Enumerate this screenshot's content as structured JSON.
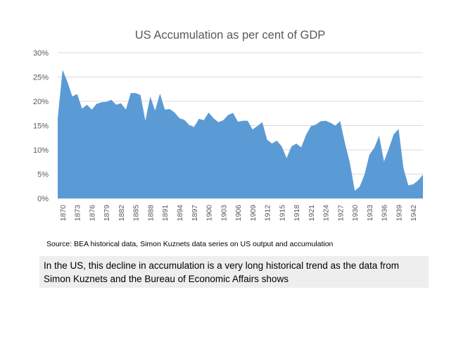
{
  "chart_data": {
    "type": "area",
    "title": "US Accumulation as per cent of GDP",
    "xlabel": "",
    "ylabel": "",
    "ylim": [
      0,
      30
    ],
    "y_ticks": [
      "0%",
      "5%",
      "10%",
      "15%",
      "20%",
      "25%",
      "30%"
    ],
    "x_tick_labels": [
      "1870",
      "1873",
      "1876",
      "1879",
      "1882",
      "1885",
      "1888",
      "1891",
      "1894",
      "1897",
      "1900",
      "1903",
      "1906",
      "1909",
      "1912",
      "1915",
      "1918",
      "1921",
      "1924",
      "1927",
      "1930",
      "1933",
      "1936",
      "1939",
      "1942"
    ],
    "grid": true,
    "legend": "none",
    "color": "#5b9bd5",
    "x": [
      1869,
      1870,
      1871,
      1872,
      1873,
      1874,
      1875,
      1876,
      1877,
      1878,
      1879,
      1880,
      1881,
      1882,
      1883,
      1884,
      1885,
      1886,
      1887,
      1888,
      1889,
      1890,
      1891,
      1892,
      1893,
      1894,
      1895,
      1896,
      1897,
      1898,
      1899,
      1900,
      1901,
      1902,
      1903,
      1904,
      1905,
      1906,
      1907,
      1908,
      1909,
      1910,
      1911,
      1912,
      1913,
      1914,
      1915,
      1916,
      1917,
      1918,
      1919,
      1920,
      1921,
      1922,
      1923,
      1924,
      1925,
      1926,
      1927,
      1928,
      1929,
      1930,
      1931,
      1932,
      1933,
      1934,
      1935,
      1936,
      1937,
      1938,
      1939,
      1940,
      1941,
      1942,
      1943,
      1944
    ],
    "values": [
      16.5,
      26.5,
      24,
      21,
      21.5,
      18.5,
      19.3,
      18.3,
      19.5,
      19.8,
      19.9,
      20.3,
      19.3,
      19.6,
      18.3,
      21.7,
      21.7,
      21.3,
      16,
      21,
      18.1,
      21.6,
      18.3,
      18.4,
      17.7,
      16.5,
      16.2,
      15.1,
      14.7,
      16.4,
      16.1,
      17.7,
      16.5,
      15.7,
      16.1,
      17.2,
      17.6,
      15.8,
      16,
      16,
      14.2,
      14.9,
      15.7,
      12.1,
      11.3,
      11.9,
      10.7,
      8.3,
      10.7,
      11.3,
      10.5,
      13.1,
      14.9,
      15.2,
      15.9,
      16,
      15.6,
      15,
      15.9,
      11.3,
      7.3,
      1.6,
      2.4,
      4.9,
      9,
      10.4,
      12.9,
      7.6,
      10.3,
      13.2,
      14.3,
      6.2,
      2.7,
      2.9,
      3.7,
      4.9
    ]
  },
  "footer": {
    "source": "Source: BEA historical data, Simon Kuznets data series on US output and accumulation",
    "caption": "In the US, this decline in accumulation is a very long historical  trend as the data from Simon Kuznets and the Bureau of Economic Affairs shows"
  }
}
